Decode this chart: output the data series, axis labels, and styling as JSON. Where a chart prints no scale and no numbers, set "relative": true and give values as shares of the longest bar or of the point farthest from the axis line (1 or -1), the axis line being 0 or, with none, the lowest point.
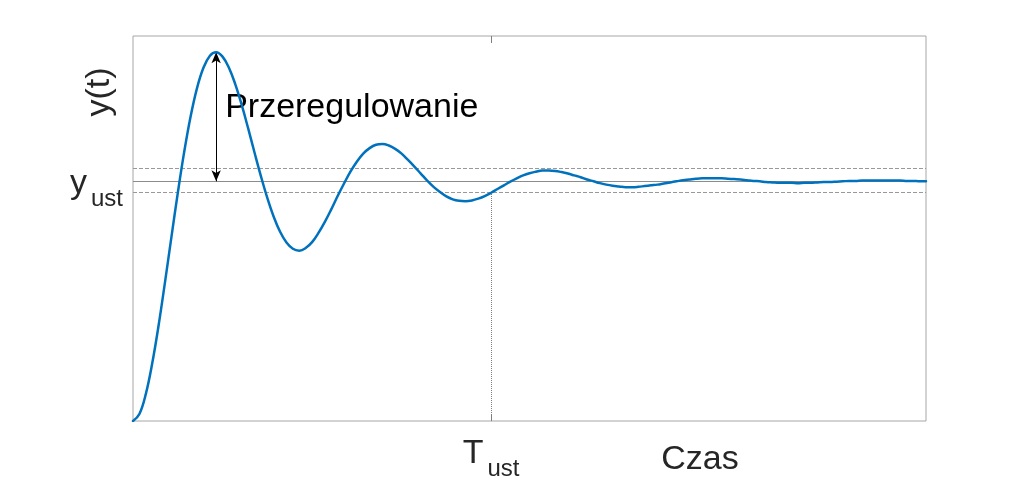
{
  "chart_data": {
    "type": "line",
    "xlabel": "Czas",
    "ylabel": "y(t)",
    "relative": true,
    "color": "#0072bd",
    "line_style": "solid",
    "categories": [
      null,
      null,
      null,
      null,
      null,
      null,
      null,
      null,
      null,
      null,
      null,
      null,
      null,
      null,
      null,
      null,
      null,
      null,
      null,
      null,
      null,
      null,
      null,
      null,
      null,
      null,
      null,
      null,
      null,
      null,
      null,
      null,
      null,
      null,
      null,
      null,
      null,
      null,
      null,
      null,
      null,
      null,
      null,
      null,
      null,
      null,
      null,
      null,
      null,
      null,
      null,
      null,
      null,
      null,
      null,
      null,
      null,
      null,
      null,
      null,
      null,
      null,
      null,
      null,
      null,
      null,
      null,
      null,
      null,
      null,
      null,
      null,
      null,
      null,
      null,
      null,
      null,
      null,
      null,
      null,
      null,
      null,
      null,
      null,
      null,
      null,
      null,
      null,
      null,
      null,
      null,
      null,
      null,
      null,
      null,
      null,
      null,
      null,
      null,
      null,
      null,
      null,
      null,
      null,
      null,
      null,
      null,
      null,
      null,
      null,
      null,
      null,
      null,
      null,
      null,
      null,
      null,
      null,
      null,
      null,
      null,
      null,
      null,
      null,
      null
    ],
    "values": [
      0.0,
      0.019,
      0.073,
      0.156,
      0.259,
      0.376,
      0.498,
      0.618,
      0.729,
      0.825,
      0.902,
      0.957,
      0.99,
      1.0,
      0.988,
      0.958,
      0.913,
      0.857,
      0.794,
      0.728,
      0.664,
      0.605,
      0.554,
      0.513,
      0.484,
      0.467,
      0.462,
      0.469,
      0.485,
      0.51,
      0.54,
      0.574,
      0.61,
      0.644,
      0.676,
      0.703,
      0.725,
      0.74,
      0.749,
      0.751,
      0.747,
      0.738,
      0.725,
      0.708,
      0.69,
      0.671,
      0.652,
      0.635,
      0.621,
      0.609,
      0.601,
      0.597,
      0.596,
      0.598,
      0.603,
      0.61,
      0.619,
      0.629,
      0.639,
      0.649,
      0.658,
      0.666,
      0.672,
      0.676,
      0.679,
      0.679,
      0.678,
      0.675,
      0.671,
      0.666,
      0.661,
      0.655,
      0.65,
      0.645,
      0.641,
      0.638,
      0.636,
      0.634,
      0.634,
      0.635,
      0.637,
      0.639,
      0.641,
      0.644,
      0.647,
      0.65,
      0.653,
      0.655,
      0.657,
      0.658,
      0.658,
      0.658,
      0.658,
      0.657,
      0.656,
      0.655,
      0.653,
      0.651,
      0.65,
      0.648,
      0.647,
      0.646,
      0.646,
      0.646,
      0.645,
      0.646,
      0.646,
      0.647,
      0.648,
      0.648,
      0.649,
      0.65,
      0.651,
      0.651,
      0.652,
      0.652,
      0.652,
      0.652,
      0.652,
      0.652,
      0.652,
      0.651,
      0.651,
      0.65,
      0.65
    ],
    "ref_lines": [
      {
        "axis": "y",
        "value": 0.685,
        "line_style": "dashed",
        "color": "#999999"
      },
      {
        "axis": "y",
        "value": 0.65,
        "label": "y$_{ust}$",
        "color": "#8c8c8c"
      },
      {
        "axis": "y",
        "value": 0.62,
        "line_style": "dashed",
        "color": "#999999"
      }
    ],
    "annotations": [
      "Przeregulowanie",
      "T$_{ust}$"
    ]
  }
}
